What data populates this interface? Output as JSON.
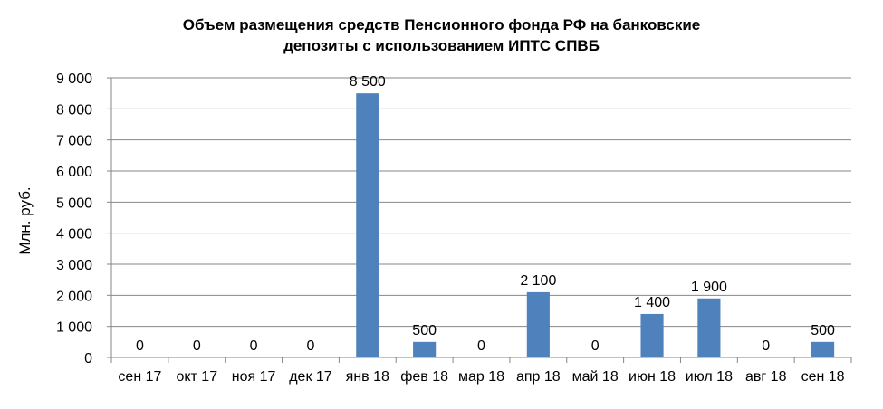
{
  "chart_data": {
    "type": "bar",
    "title": [
      "Объем размещения средств Пенсионного фонда РФ  на банковские",
      "депозиты с использованием ИПТС СПВБ"
    ],
    "xlabel": "",
    "ylabel": "Млн. руб.",
    "ylim": [
      0,
      9000
    ],
    "yticks": [
      "0",
      "1 000",
      "2 000",
      "3 000",
      "4 000",
      "5 000",
      "6 000",
      "7 000",
      "8 000",
      "9 000"
    ],
    "categories": [
      "сен 17",
      "окт 17",
      "ноя 17",
      "дек 17",
      "янв 18",
      "фев 18",
      "мар 18",
      "апр 18",
      "май 18",
      "июн 18",
      "июл 18",
      "авг 18",
      "сен 18"
    ],
    "values": [
      0,
      0,
      0,
      0,
      8500,
      500,
      0,
      2100,
      0,
      1400,
      1900,
      0,
      500
    ],
    "data_labels": [
      "0",
      "0",
      "0",
      "0",
      "8 500",
      "500",
      "0",
      "2 100",
      "0",
      "1 400",
      "1 900",
      "0",
      "500"
    ],
    "grid": true,
    "legend": "none",
    "bar_color": "#4f81bd"
  }
}
